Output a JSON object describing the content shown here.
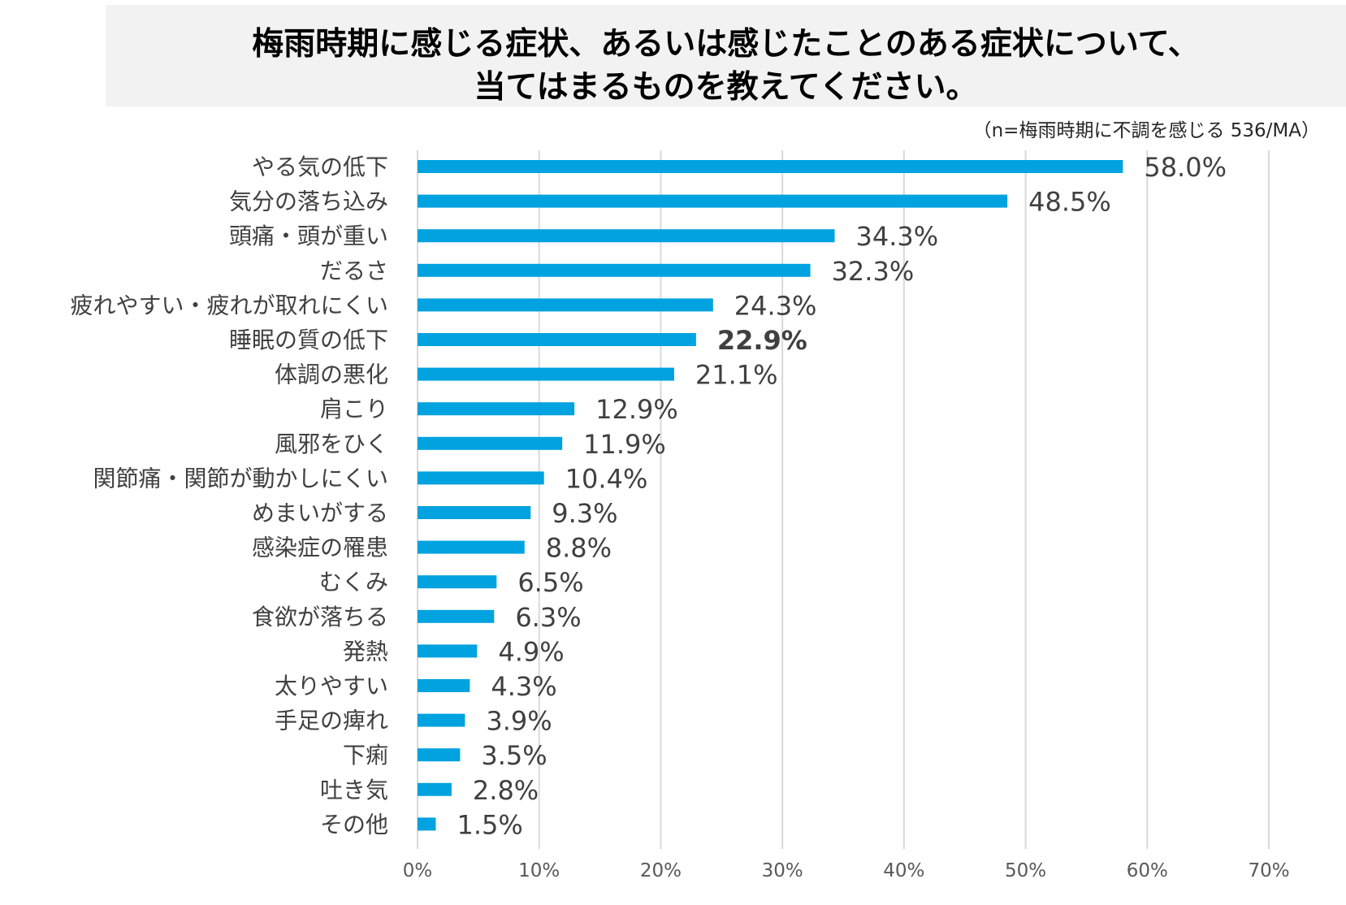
{
  "title": {
    "line1": "梅雨時期に感じる症状、あるいは感じたことのある症状について、",
    "line2": "当てはまるものを教えてください。"
  },
  "sample_note": "（n=梅雨時期に不調を感じる 536/MA）",
  "colors": {
    "bar": "#00a2e0",
    "grid": "#d9d9d9",
    "label": "#404040",
    "tick": "#595959",
    "title_bg": "#f2f2f2"
  },
  "chart_data": {
    "type": "bar",
    "orientation": "horizontal",
    "title": "梅雨時期に感じる症状、あるいは感じたことのある症状について、当てはまるものを教えてください。",
    "categories": [
      "やる気の低下",
      "気分の落ち込み",
      "頭痛・頭が重い",
      "だるさ",
      "疲れやすい・疲れが取れにくい",
      "睡眠の質の低下",
      "体調の悪化",
      "肩こり",
      "風邪をひく",
      "関節痛・関節が動かしにくい",
      "めまいがする",
      "感染症の罹患",
      "むくみ",
      "食欲が落ちる",
      "発熱",
      "太りやすい",
      "手足の痺れ",
      "下痢",
      "吐き気",
      "その他"
    ],
    "values": [
      58.0,
      48.5,
      34.3,
      32.3,
      24.3,
      22.9,
      21.1,
      12.9,
      11.9,
      10.4,
      9.3,
      8.8,
      6.5,
      6.3,
      4.9,
      4.3,
      3.9,
      3.5,
      2.8,
      1.5
    ],
    "value_labels": [
      "58.0%",
      "48.5%",
      "34.3%",
      "32.3%",
      "24.3%",
      "22.9%",
      "21.1%",
      "12.9%",
      "11.9%",
      "10.4%",
      "9.3%",
      "8.8%",
      "6.5%",
      "6.3%",
      "4.9%",
      "4.3%",
      "3.9%",
      "3.5%",
      "2.8%",
      "1.5%"
    ],
    "highlight_index": 5,
    "xlim": [
      0,
      70
    ],
    "xticks": [
      0,
      10,
      20,
      30,
      40,
      50,
      60,
      70
    ],
    "xtick_labels": [
      "0%",
      "10%",
      "20%",
      "30%",
      "40%",
      "50%",
      "60%",
      "70%"
    ],
    "xlabel": "",
    "ylabel": "",
    "grid": true,
    "legend": false
  }
}
